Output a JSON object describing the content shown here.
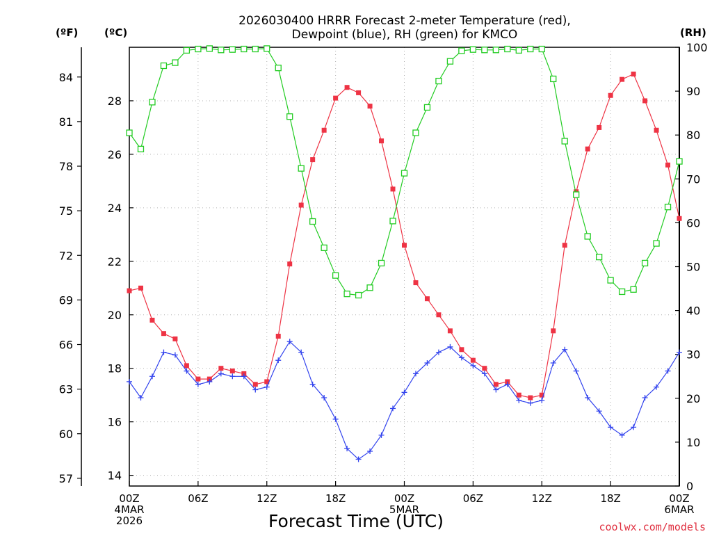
{
  "chart_data": {
    "type": "line",
    "title_lines": [
      "2026030400 HRRR Forecast 2-meter Temperature (red),",
      "Dewpoint (blue), RH (green) for KMCO"
    ],
    "unit_labels": {
      "fahrenheit": "(ºF)",
      "celsius": "(ºC)",
      "rh": "(RH)"
    },
    "xlabel": "Forecast Time (UTC)",
    "credit": "coolwx.com/models",
    "x_unit": "hours since 2026-03-04 00Z",
    "xlim": [
      0,
      48
    ],
    "x_ticks": [
      {
        "x": 0,
        "lines": [
          "00Z",
          "4MAR",
          "2026"
        ]
      },
      {
        "x": 6,
        "lines": [
          "06Z"
        ]
      },
      {
        "x": 12,
        "lines": [
          "12Z"
        ]
      },
      {
        "x": 18,
        "lines": [
          "18Z"
        ]
      },
      {
        "x": 24,
        "lines": [
          "00Z",
          "5MAR"
        ]
      },
      {
        "x": 30,
        "lines": [
          "06Z"
        ]
      },
      {
        "x": 36,
        "lines": [
          "12Z"
        ]
      },
      {
        "x": 42,
        "lines": [
          "18Z"
        ]
      },
      {
        "x": 48,
        "lines": [
          "00Z",
          "6MAR"
        ]
      }
    ],
    "y_left_celsius": {
      "label": "(ºC)",
      "ticks": [
        14,
        16,
        18,
        20,
        22,
        24,
        26,
        28
      ],
      "lim": [
        13.6,
        30.0
      ]
    },
    "y_left_fahrenheit": {
      "label": "(ºF)",
      "ticks": [
        57,
        60,
        63,
        66,
        69,
        72,
        75,
        78,
        81,
        84
      ]
    },
    "y_right_rh": {
      "label": "(RH)",
      "ticks": [
        0,
        10,
        20,
        30,
        40,
        50,
        60,
        70,
        80,
        90,
        100
      ],
      "lim": [
        0,
        100
      ]
    },
    "grid": true,
    "series": [
      {
        "name": "Temperature",
        "axis": "celsius",
        "color": "#ee3344",
        "marker": "filled-square",
        "values": [
          20.9,
          21.0,
          19.8,
          19.3,
          19.1,
          18.1,
          17.6,
          17.6,
          18.0,
          17.9,
          17.8,
          17.4,
          17.5,
          19.2,
          21.9,
          24.1,
          25.8,
          26.9,
          28.1,
          28.5,
          28.3,
          27.8,
          26.5,
          24.7,
          22.6,
          21.2,
          20.6,
          20.0,
          19.4,
          18.7,
          18.3,
          18.0,
          17.4,
          17.5,
          17.0,
          16.9,
          17.0,
          19.4,
          22.6,
          24.6,
          26.2,
          27.0,
          28.2,
          28.8,
          29.0,
          28.0,
          26.9,
          25.6,
          23.6
        ]
      },
      {
        "name": "Dewpoint",
        "axis": "celsius",
        "color": "#3344ee",
        "marker": "plus",
        "values": [
          17.5,
          16.9,
          17.7,
          18.6,
          18.5,
          17.9,
          17.4,
          17.5,
          17.8,
          17.7,
          17.7,
          17.2,
          17.3,
          18.3,
          19.0,
          18.6,
          17.4,
          16.9,
          16.1,
          15.0,
          14.6,
          14.9,
          15.5,
          16.5,
          17.1,
          17.8,
          18.2,
          18.6,
          18.8,
          18.4,
          18.1,
          17.8,
          17.2,
          17.4,
          16.8,
          16.7,
          16.8,
          18.2,
          18.7,
          17.9,
          16.9,
          16.4,
          15.8,
          15.5,
          15.8,
          16.9,
          17.3,
          17.9,
          18.6
        ]
      },
      {
        "name": "RH",
        "axis": "rh",
        "color": "#22cc22",
        "marker": "open-square",
        "values": [
          80.5,
          76.8,
          87.5,
          95.8,
          96.5,
          99.3,
          99.6,
          99.7,
          99.4,
          99.5,
          99.6,
          99.6,
          99.7,
          95.3,
          84.2,
          72.4,
          60.3,
          54.3,
          48.0,
          43.8,
          43.5,
          45.2,
          50.8,
          60.4,
          71.3,
          80.5,
          86.3,
          92.3,
          96.8,
          99.2,
          99.5,
          99.4,
          99.4,
          99.6,
          99.3,
          99.6,
          99.6,
          92.8,
          78.6,
          66.4,
          56.9,
          52.2,
          46.9,
          44.3,
          44.8,
          50.8,
          55.3,
          63.6,
          74.0
        ]
      }
    ]
  }
}
